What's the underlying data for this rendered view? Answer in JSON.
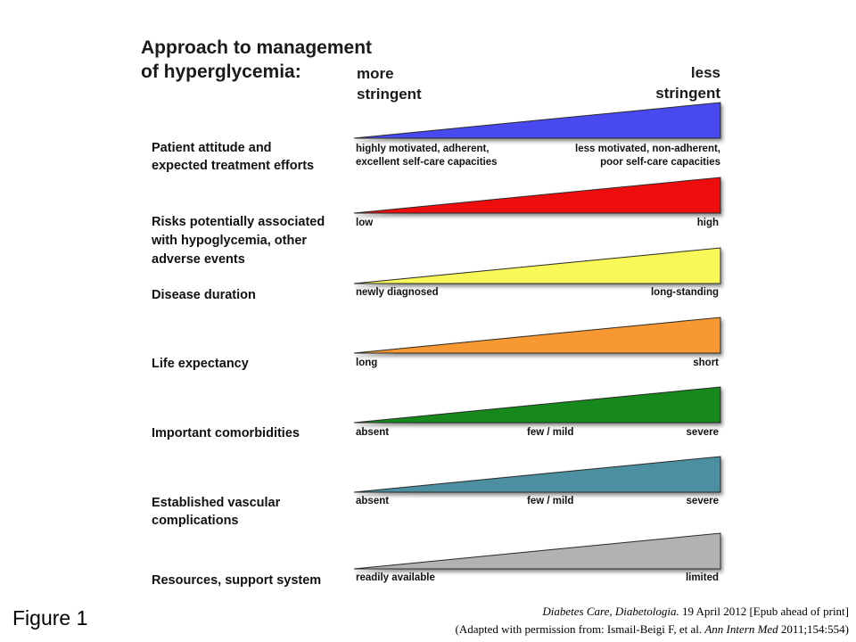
{
  "title_lines": [
    "Approach to management",
    "of hyperglycemia:"
  ],
  "direction": {
    "more": [
      "more",
      "stringent"
    ],
    "less": [
      "less",
      "stringent"
    ]
  },
  "rows": [
    {
      "label": [
        "Patient attitude and",
        "expected treatment efforts"
      ],
      "color": "#4848f0",
      "left_text": [
        "highly motivated, adherent,",
        "excellent self-care capacities"
      ],
      "mid_text": "",
      "right_text": [
        "less motivated, non-adherent,",
        "poor self-care capacities"
      ]
    },
    {
      "label": [
        "Risks potentially associated",
        "with hypoglycemia, other",
        "adverse events"
      ],
      "color": "#ee1010",
      "left_text": [
        "low"
      ],
      "mid_text": "",
      "right_text": [
        "high"
      ]
    },
    {
      "label": [
        "Disease duration"
      ],
      "color": "#f8f858",
      "left_text": [
        "newly diagnosed"
      ],
      "mid_text": "",
      "right_text": [
        "long-standing"
      ]
    },
    {
      "label": [
        "Life expectancy"
      ],
      "color": "#f89830",
      "left_text": [
        "long"
      ],
      "mid_text": "",
      "right_text": [
        "short"
      ]
    },
    {
      "label": [
        "Important comorbidities"
      ],
      "color": "#17881a",
      "left_text": [
        "absent"
      ],
      "mid_text": "few / mild",
      "right_text": [
        "severe"
      ]
    },
    {
      "label": [
        "Established vascular",
        "complications"
      ],
      "color": "#4b8fa0",
      "left_text": [
        "absent"
      ],
      "mid_text": "few / mild",
      "right_text": [
        "severe"
      ]
    },
    {
      "label": [
        "Resources, support system"
      ],
      "color": "#b2b2b2",
      "left_text": [
        "readily available"
      ],
      "mid_text": "",
      "right_text": [
        "limited"
      ]
    }
  ],
  "figure_label": "Figure 1",
  "source": {
    "line1_italic": "Diabetes Care, Diabetologia.",
    "line1_rest": " 19 April 2012 [Epub ahead of print]",
    "line2_pre": "(Adapted with permission from: Ismail-Beigi F, et al. ",
    "line2_italic": "Ann Intern Med",
    "line2_post": " 2011;154:554)"
  }
}
